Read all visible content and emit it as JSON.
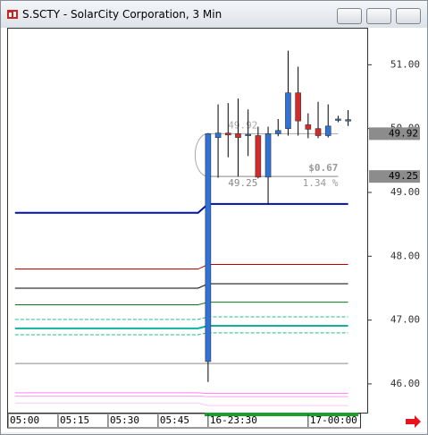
{
  "title": "S.SCTY - SolarCity Corporation, 3 Min",
  "chart_data": {
    "type": "candlestick",
    "x": [
      0,
      1,
      2,
      3,
      4,
      5,
      6,
      7,
      8,
      9,
      10,
      11,
      12,
      13,
      14
    ],
    "open": [
      46.35,
      49.86,
      49.93,
      49.92,
      49.9,
      49.89,
      49.24,
      49.92,
      50.0,
      50.56,
      50.06,
      50.0,
      49.89,
      50.13,
      50.14
    ],
    "high": [
      49.93,
      50.38,
      50.4,
      50.47,
      50.3,
      50.03,
      50.03,
      50.15,
      51.22,
      50.97,
      50.24,
      50.42,
      50.38,
      50.2,
      50.29
    ],
    "low": [
      46.03,
      49.23,
      49.55,
      49.25,
      49.57,
      49.22,
      48.81,
      49.88,
      49.89,
      49.89,
      49.85,
      49.85,
      49.86,
      50.1,
      50.04
    ],
    "close": [
      49.92,
      49.93,
      49.9,
      49.86,
      49.91,
      49.24,
      49.92,
      49.97,
      50.56,
      50.12,
      49.99,
      49.89,
      50.04,
      50.15,
      50.14
    ],
    "up_color": "#2f72d8",
    "down_color": "#d42a2a",
    "xlim": [
      -20,
      16
    ],
    "xticks": [
      {
        "value": -20,
        "label": "05:00"
      },
      {
        "value": -15,
        "label": "05:15"
      },
      {
        "value": -10,
        "label": "05:30"
      },
      {
        "value": -5,
        "label": "05:45"
      },
      {
        "value": 0,
        "label": "16-23:30"
      },
      {
        "value": 10,
        "label": "17-00:00"
      }
    ],
    "ylim": [
      45.55,
      51.58
    ],
    "yticks": [
      {
        "value": 46,
        "label": "46.00"
      },
      {
        "value": 47,
        "label": "47.00"
      },
      {
        "value": 48,
        "label": "48.00"
      },
      {
        "value": 49,
        "label": "49.00"
      },
      {
        "value": 50,
        "label": "50.00"
      },
      {
        "value": 51,
        "label": "51.00"
      }
    ],
    "level_x": [
      -19.3,
      -1,
      0,
      14
    ],
    "levels": [
      {
        "color": "#0010a8",
        "width": 2,
        "dashed": false,
        "values": [
          48.68,
          48.68,
          48.82,
          48.82
        ]
      },
      {
        "color": "#c00000",
        "width": 1,
        "dashed": false,
        "values": [
          47.8,
          47.8,
          47.87,
          47.87
        ]
      },
      {
        "color": "#000000",
        "width": 1,
        "dashed": false,
        "values": [
          47.5,
          47.5,
          47.57,
          47.57
        ]
      },
      {
        "color": "#0a7a1a",
        "width": 1,
        "dashed": false,
        "values": [
          47.24,
          47.24,
          47.28,
          47.28
        ]
      },
      {
        "color": "#1cbf8a",
        "width": 1,
        "dashed": true,
        "values": [
          47.01,
          47.01,
          47.05,
          47.05
        ]
      },
      {
        "color": "#10b0a0",
        "width": 2,
        "dashed": false,
        "values": [
          46.87,
          46.87,
          46.91,
          46.91
        ]
      },
      {
        "color": "#1cbf8a",
        "width": 1,
        "dashed": true,
        "values": [
          46.77,
          46.77,
          46.8,
          46.8
        ]
      },
      {
        "color": "#8a8a8a",
        "width": 1,
        "dashed": false,
        "values": [
          46.32,
          46.32,
          46.32,
          46.32
        ]
      },
      {
        "color": "#ff7ff0",
        "width": 1,
        "dashed": false,
        "values": [
          45.86,
          45.86,
          45.85,
          45.85
        ]
      },
      {
        "color": "#ff9ff5",
        "width": 1,
        "dashed": false,
        "values": [
          45.81,
          45.81,
          45.8,
          45.8
        ]
      },
      {
        "color": "#ffc8f8",
        "width": 1,
        "dashed": false,
        "values": [
          45.7,
          45.7,
          45.66,
          45.66
        ]
      }
    ],
    "price_tags": [
      {
        "value": 49.92,
        "label": "49.92"
      },
      {
        "value": 49.25,
        "label": "49.25"
      }
    ],
    "measure": {
      "x_end": 13,
      "low": {
        "value": 49.25,
        "label": "49.25"
      },
      "high": {
        "value": 49.92,
        "label": "49.92"
      },
      "change": "$0.67",
      "percent": "1.34 %"
    }
  }
}
